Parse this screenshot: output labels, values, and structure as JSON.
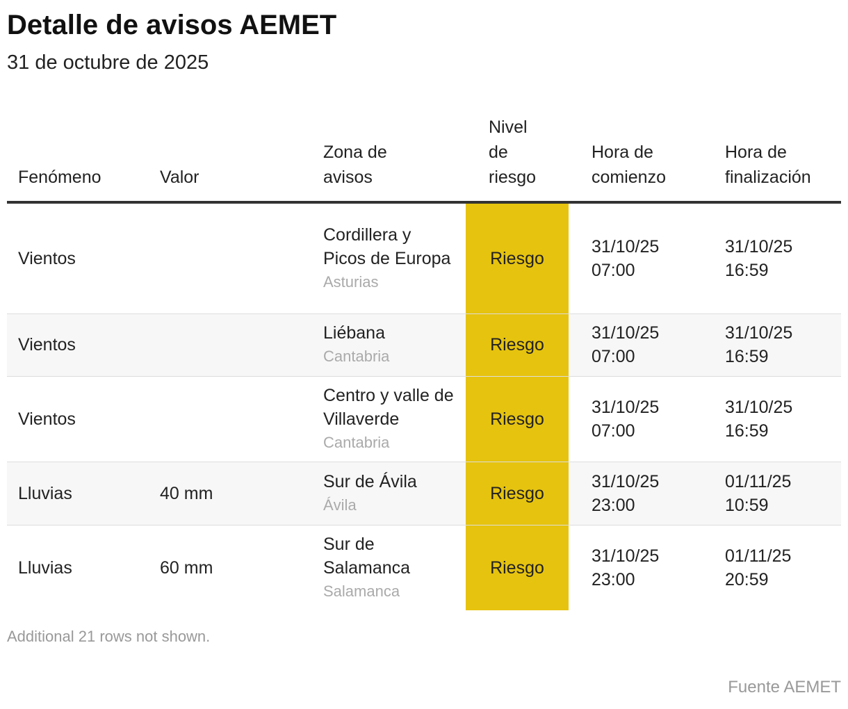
{
  "header": {
    "title": "Detalle de avisos AEMET",
    "subtitle": "31 de octubre de 2025"
  },
  "table": {
    "columns": [
      "Fenómeno",
      "Valor",
      "Zona de avisos",
      "Nivel de riesgo",
      "Hora de comienzo",
      "Hora de finalización"
    ],
    "rows": [
      {
        "phenomenon": "Vientos",
        "zone": "Cordillera y Picos de Europa",
        "province": "Asturias",
        "level": "Riesgo",
        "start": "31/10/25 07:00",
        "end": "31/10/25 16:59"
      },
      {
        "phenomenon": "Vientos",
        "zone": "Liébana",
        "province": "Cantabria",
        "level": "Riesgo",
        "start": "31/10/25 07:00",
        "end": "31/10/25 16:59"
      },
      {
        "phenomenon": "Vientos",
        "zone": "Centro y valle de Villaverde",
        "province": "Cantabria",
        "level": "Riesgo",
        "start": "31/10/25 07:00",
        "end": "31/10/25 16:59"
      },
      {
        "phenomenon": "Lluvias",
        "value": "40 mm",
        "zone": "Sur de Ávila",
        "province": "Ávila",
        "level": "Riesgo",
        "start": "31/10/25 23:00",
        "end": "01/11/25 10:59"
      },
      {
        "phenomenon": "Lluvias",
        "value": "60 mm",
        "zone": "Sur de Salamanca",
        "province": "Salamanca",
        "level": "Riesgo",
        "start": "31/10/25 23:00",
        "end": "01/11/25 20:59"
      }
    ],
    "level_color": "#e6c30f"
  },
  "footer": {
    "note": "Additional 21 rows not shown.",
    "source": "Fuente AEMET"
  }
}
